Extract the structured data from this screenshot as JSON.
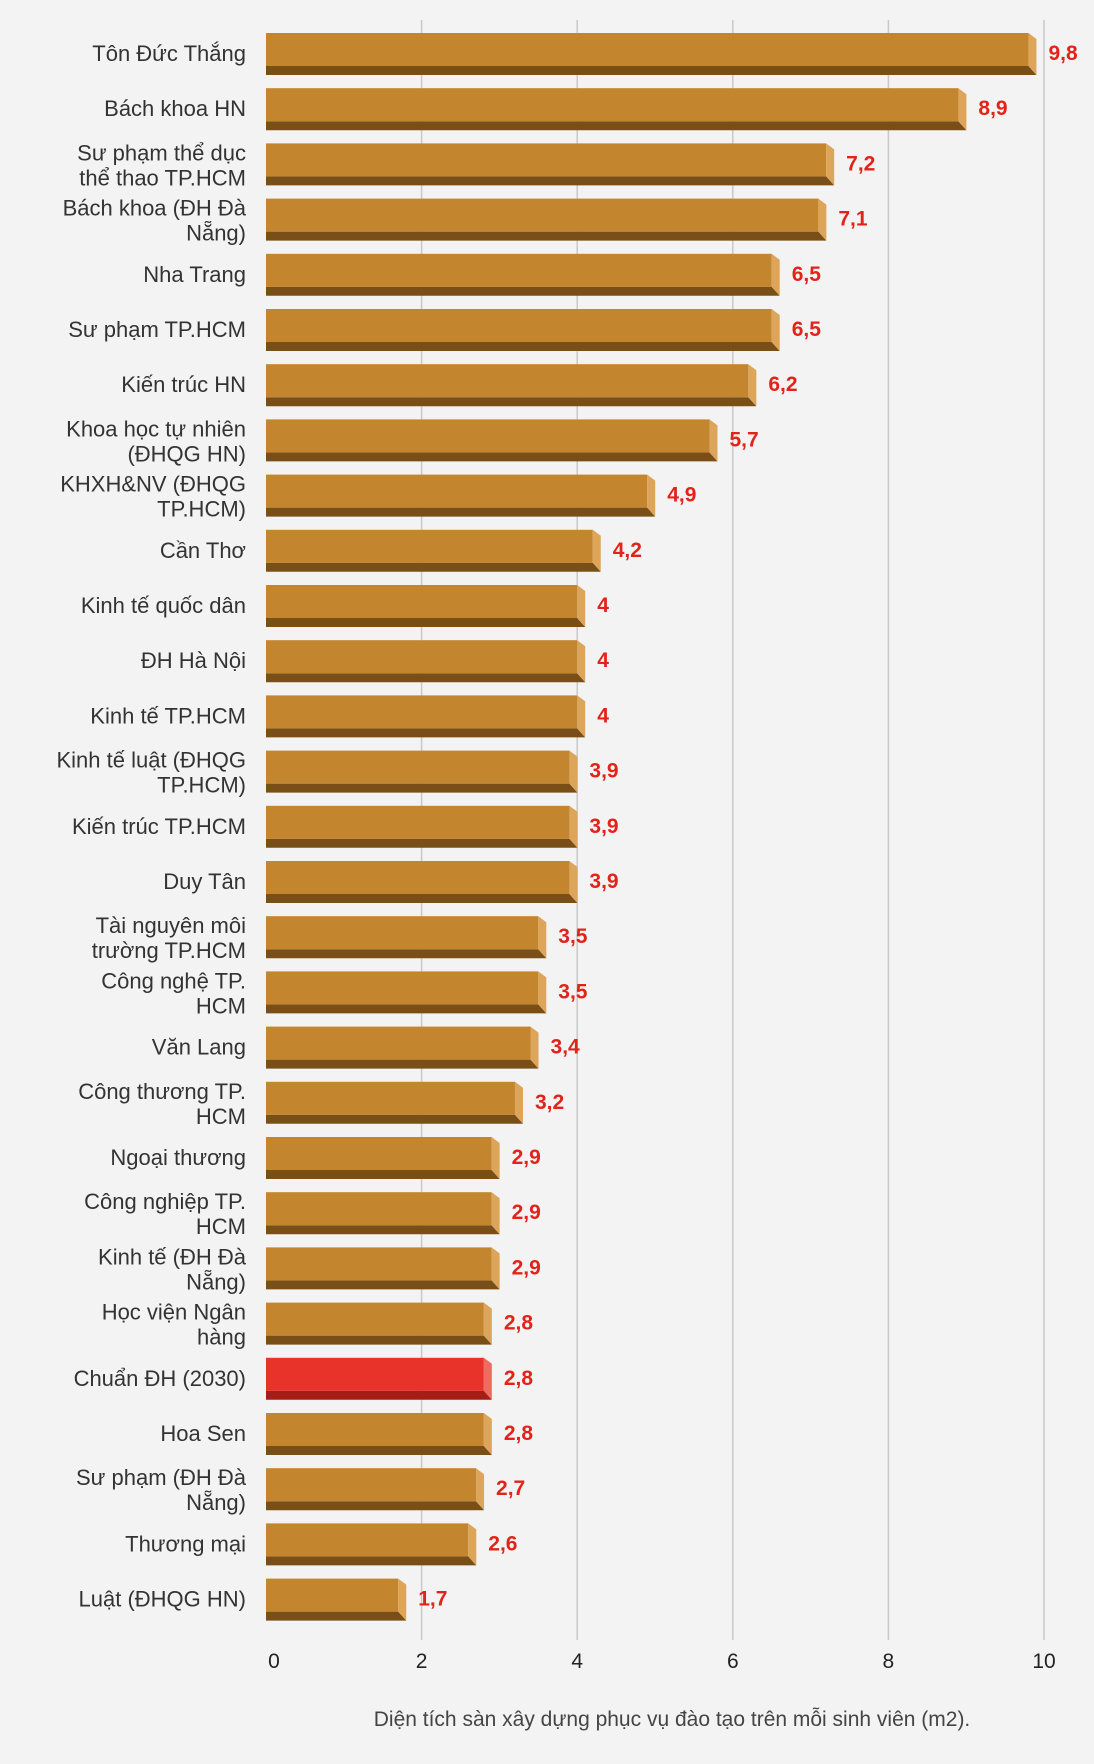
{
  "chart_data": {
    "type": "bar",
    "orientation": "horizontal",
    "categories": [
      "Tôn Đức Thắng",
      "Bách khoa HN",
      "Sư phạm thể dục\nthể thao TP.HCM",
      "Bách khoa (ĐH Đà\nNẵng)",
      "Nha Trang",
      "Sư phạm TP.HCM",
      "Kiến trúc HN",
      "Khoa học tự nhiên\n(ĐHQG HN)",
      "KHXH&NV (ĐHQG\nTP.HCM)",
      "Cần Thơ",
      "Kinh tế quốc dân",
      "ĐH Hà Nội",
      "Kinh tế TP.HCM",
      "Kinh tế luật (ĐHQG\nTP.HCM)",
      "Kiến trúc TP.HCM",
      "Duy Tân",
      "Tài nguyên môi\ntrường TP.HCM",
      "Công nghệ TP.\nHCM",
      "Văn Lang",
      "Công thương TP.\nHCM",
      "Ngoại thương",
      "Công nghiệp TP.\nHCM",
      "Kinh tế (ĐH Đà\nNẵng)",
      "Học viện Ngân\nhàng",
      "Chuẩn ĐH (2030)",
      "Hoa Sen",
      "Sư phạm (ĐH Đà\nNẵng)",
      "Thương mại",
      "Luật (ĐHQG HN)"
    ],
    "values": [
      9.8,
      8.9,
      7.2,
      7.1,
      6.5,
      6.5,
      6.2,
      5.7,
      4.9,
      4.2,
      4,
      4,
      4,
      3.9,
      3.9,
      3.9,
      3.5,
      3.5,
      3.4,
      3.2,
      2.9,
      2.9,
      2.9,
      2.8,
      2.8,
      2.8,
      2.7,
      2.6,
      1.7
    ],
    "value_labels": [
      "9,8",
      "8,9",
      "7,2",
      "7,1",
      "6,5",
      "6,5",
      "6,2",
      "5,7",
      "4,9",
      "4,2",
      "4",
      "4",
      "4",
      "3,9",
      "3,9",
      "3,9",
      "3,5",
      "3,5",
      "3,4",
      "3,2",
      "2,9",
      "2,9",
      "2,9",
      "2,8",
      "2,8",
      "2,8",
      "2,7",
      "2,6",
      "1,7"
    ],
    "highlight_index": 24,
    "xlim": [
      0,
      10
    ],
    "xticks": [
      0,
      2,
      4,
      6,
      8,
      10
    ],
    "xlabel": "Diện tích sàn xây dựng phục vụ đào tạo trên mỗi sinh viên (m2).",
    "grid": "vertical",
    "colors": {
      "bar": "#c4852f",
      "bar_shadow": "#7a4f17",
      "bar_side": "#dca55a",
      "highlight": "#e8332a",
      "highlight_shadow": "#a51d15",
      "highlight_side": "#ef6a5f",
      "value_text": "#e2231a",
      "grid": "#c9c9c9"
    }
  }
}
